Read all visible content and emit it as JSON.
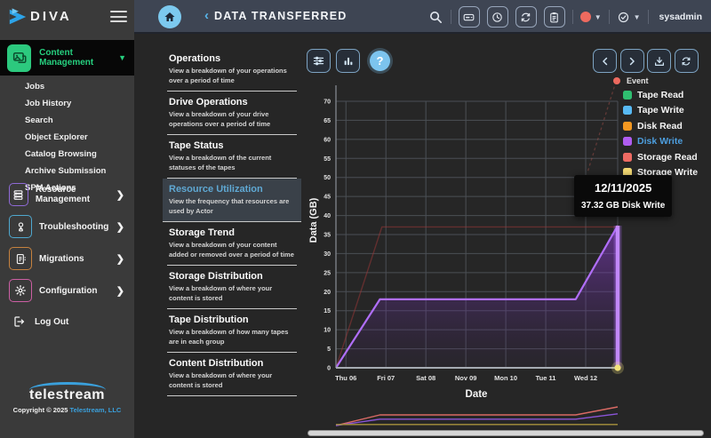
{
  "header": {
    "brand": "DIVA",
    "back_glyph": "‹",
    "title": "DATA TRANSFERRED",
    "username": "sysadmin",
    "status_color": "#ee6a5f"
  },
  "sidebar": {
    "active_section": {
      "label": "Content Management",
      "accent": "#26d07f",
      "caret": "▼"
    },
    "sub_items": [
      "Jobs",
      "Job History",
      "Search",
      "Object Explorer",
      "Catalog Browsing",
      "Archive Submission",
      "SPM Actions"
    ],
    "sections": [
      {
        "label": "Resource Management",
        "accent": "#8f6ad6",
        "chevron": "❯"
      },
      {
        "label": "Troubleshooting",
        "accent": "#4fa8cf",
        "chevron": "❯"
      },
      {
        "label": "Migrations",
        "accent": "#c6823f",
        "chevron": "❯"
      },
      {
        "label": "Configuration",
        "accent": "#cc5fa4",
        "chevron": "❯"
      }
    ],
    "logout_label": "Log Out",
    "footer": {
      "logo_text": "telestream",
      "copyright": "Copyright © 2025",
      "company": "Telestream, LLC"
    }
  },
  "reports": {
    "items": [
      {
        "title": "Operations",
        "desc": "View a breakdown of your operations over a period of time",
        "selected": false
      },
      {
        "title": "Drive Operations",
        "desc": "View a breakdown of your drive operations over a period of time",
        "selected": false
      },
      {
        "title": "Tape Status",
        "desc": "View a breakdown of the current statuses of the tapes",
        "selected": false
      },
      {
        "title": "Resource Utilization",
        "desc": "View the frequency that resources are used by Actor",
        "selected": true
      },
      {
        "title": "Storage Trend",
        "desc": "View a breakdown of your content added or removed over a period of time",
        "selected": false
      },
      {
        "title": "Storage Distribution",
        "desc": "View a breakdown of where your content is stored",
        "selected": false
      },
      {
        "title": "Tape Distribution",
        "desc": "View a breakdown of how many tapes are in each group",
        "selected": false
      },
      {
        "title": "Content Distribution",
        "desc": "View a breakdown of where your content is stored",
        "selected": false
      }
    ]
  },
  "toolbar": {
    "help_label": "?"
  },
  "tooltip": {
    "date": "12/11/2025",
    "value": "37.32 GB Disk Write"
  },
  "chart_data": {
    "type": "area",
    "xlabel": "Date",
    "ylabel": "Data (GB)",
    "ylim": [
      0,
      70
    ],
    "ytick_step": 5,
    "x_domain": [
      -0.25,
      6.8
    ],
    "x_ticks": [
      {
        "pos": 0,
        "label": "Thu 06"
      },
      {
        "pos": 1,
        "label": "Fri 07"
      },
      {
        "pos": 2,
        "label": "Sat 08"
      },
      {
        "pos": 3,
        "label": "Nov 09"
      },
      {
        "pos": 4,
        "label": "Mon 10"
      },
      {
        "pos": 5,
        "label": "Tue 11"
      },
      {
        "pos": 6,
        "label": "Wed 12"
      }
    ],
    "event_label": "Event",
    "event_color": "#ee6a5f",
    "legend": [
      {
        "label": "Tape Read",
        "color": "#2fbe70"
      },
      {
        "label": "Tape Write",
        "color": "#58baf4"
      },
      {
        "label": "Disk Read",
        "color": "#f39821"
      },
      {
        "label": "Disk Write",
        "color": "#b05df0",
        "text_color": "#4d9fe0"
      },
      {
        "label": "Storage Read",
        "color": "#ee6b63"
      },
      {
        "label": "Storage Write",
        "color": "#f2d873"
      }
    ],
    "series": [
      {
        "name": "Storage Read (dimmed)",
        "color": "rgba(160,55,55,0.5)",
        "dimmed": true,
        "points": [
          [
            -0.25,
            0
          ],
          [
            0.9,
            37
          ],
          [
            6.8,
            37
          ]
        ]
      },
      {
        "name": "Disk Write",
        "color": "#b06ef8",
        "highlighted": true,
        "fill_top": "rgba(146,62,220,0.55)",
        "fill_bottom": "rgba(70,35,110,0.08)",
        "points": [
          [
            -0.25,
            0
          ],
          [
            0.85,
            18
          ],
          [
            5.75,
            18
          ],
          [
            6.8,
            37.32
          ]
        ]
      }
    ],
    "endpoint_marker": {
      "x": 6.8,
      "y": 0,
      "color": "#f2e27a"
    },
    "overview": {
      "ylim": [
        0,
        40
      ],
      "series": [
        {
          "name": "Storage Read",
          "color": "#d96a64",
          "points": [
            [
              -0.25,
              0
            ],
            [
              0.85,
              20
            ],
            [
              5.75,
              20
            ],
            [
              6.8,
              35
            ]
          ]
        },
        {
          "name": "Disk Write",
          "color": "#8a55d8",
          "points": [
            [
              -0.25,
              0
            ],
            [
              0.85,
              12
            ],
            [
              5.75,
              12
            ],
            [
              6.8,
              22
            ]
          ]
        },
        {
          "name": "Storage Write",
          "color": "#a8933c",
          "points": [
            [
              -0.25,
              2
            ],
            [
              6.8,
              2
            ]
          ]
        }
      ]
    }
  }
}
